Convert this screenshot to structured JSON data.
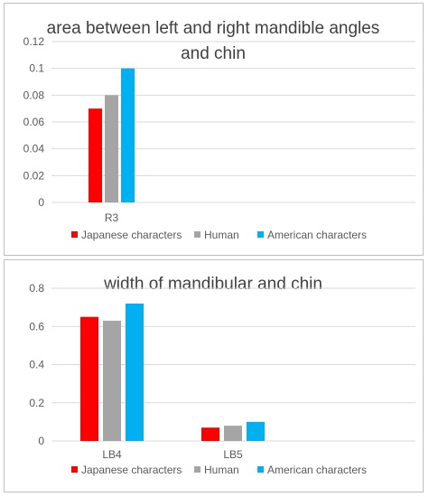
{
  "colors": {
    "japanese": "#ff0000",
    "human": "#a5a5a5",
    "american": "#00b0f0",
    "grid": "#d9d9d9",
    "text": "#595959",
    "title": "#404040"
  },
  "chart_data": [
    {
      "type": "bar",
      "title_lines": [
        "area between left and right mandible angles",
        "and chin"
      ],
      "categories": [
        "R3"
      ],
      "series": [
        {
          "name": "Japanese characters",
          "values": [
            0.07
          ]
        },
        {
          "name": "Human",
          "values": [
            0.08
          ]
        },
        {
          "name": "American characters",
          "values": [
            0.1
          ]
        }
      ],
      "yticks": [
        "0",
        "0.02",
        "0.04",
        "0.06",
        "0.08",
        "0.1",
        "0.12"
      ],
      "ylim": [
        0,
        0.12
      ],
      "legend_position": "bottom",
      "grid": true
    },
    {
      "type": "bar",
      "title_lines": [
        "width of mandibular and chin"
      ],
      "categories": [
        "LB4",
        "LB5"
      ],
      "series": [
        {
          "name": "Japanese characters",
          "values": [
            0.65,
            0.07
          ]
        },
        {
          "name": "Human",
          "values": [
            0.63,
            0.08
          ]
        },
        {
          "name": "American characters",
          "values": [
            0.72,
            0.1
          ]
        }
      ],
      "yticks": [
        "0",
        "0.2",
        "0.4",
        "0.6",
        "0.8"
      ],
      "ylim": [
        0,
        0.8
      ],
      "legend_position": "bottom",
      "grid": true
    }
  ]
}
